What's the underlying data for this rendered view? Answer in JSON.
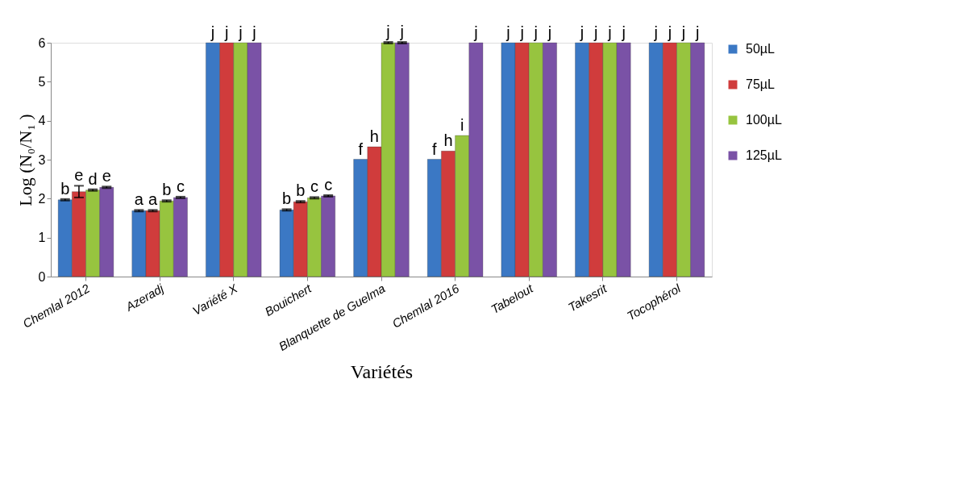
{
  "chart_data": {
    "type": "bar",
    "xlabel": "Variétés",
    "ylabel": "Log (N₀/N₁ )",
    "categories": [
      "Chemlal 2012",
      "Azeradj",
      "Variété X",
      "Bouichert",
      "Blanquette de Guelma",
      "Chemlal 2016",
      "Tabelout",
      "Takesrit",
      "Tocophérol"
    ],
    "series": [
      {
        "name": "50µL",
        "color": "#3b78c4",
        "values": [
          1.97,
          1.69,
          6,
          1.71,
          3.01,
          3.01,
          6,
          6,
          6
        ],
        "errors": [
          0.02,
          0.02,
          null,
          0.02,
          null,
          null,
          null,
          null,
          null
        ],
        "value_labels": [
          "b",
          "a",
          "j",
          "b",
          "f",
          "f",
          "j",
          "j",
          "j"
        ]
      },
      {
        "name": "75µL",
        "color": "#d03c3c",
        "values": [
          2.18,
          1.69,
          6,
          1.92,
          3.33,
          3.22,
          6,
          6,
          6
        ],
        "errors": [
          0.15,
          0.02,
          null,
          0.02,
          null,
          null,
          null,
          null,
          null
        ],
        "value_labels": [
          "e",
          "a",
          "j",
          "b",
          "h",
          "h",
          "j",
          "j",
          "j"
        ]
      },
      {
        "name": "100µL",
        "color": "#97c43f",
        "values": [
          2.22,
          1.94,
          6,
          2.02,
          6,
          3.62,
          6,
          6,
          6
        ],
        "errors": [
          0.02,
          0.02,
          null,
          0.02,
          0.02,
          null,
          null,
          null,
          null
        ],
        "value_labels": [
          "d",
          "b",
          "j",
          "c",
          "j",
          "i",
          "j",
          "j",
          "j"
        ]
      },
      {
        "name": "125µL",
        "color": "#7a52a6",
        "values": [
          2.29,
          2.03,
          6,
          2.07,
          6,
          6,
          6,
          6,
          6
        ],
        "errors": [
          0.02,
          0.02,
          null,
          0.02,
          0.02,
          null,
          null,
          null,
          null
        ],
        "value_labels": [
          "e",
          "c",
          "j",
          "c",
          "j",
          "j",
          "j",
          "j",
          "j"
        ]
      }
    ],
    "ylim": [
      0,
      6
    ],
    "yticks": [
      0,
      1,
      2,
      3,
      4,
      5,
      6
    ],
    "grid": false,
    "legend": "right"
  }
}
